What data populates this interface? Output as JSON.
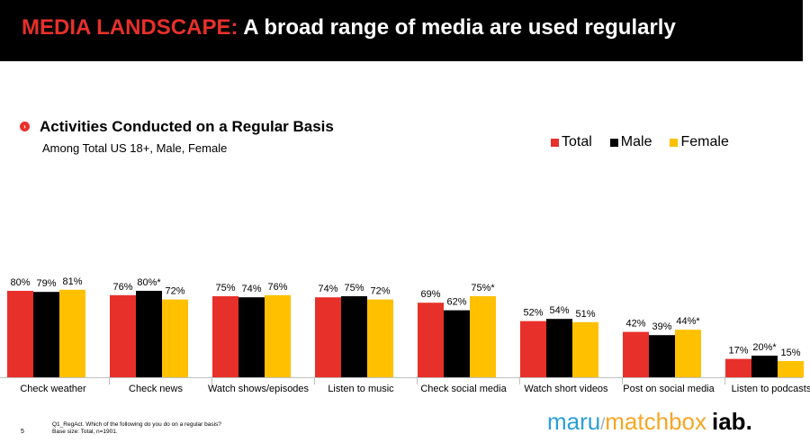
{
  "header": {
    "title_accent": "MEDIA LANDSCAPE:",
    "title_rest": "A broad range of media are used regularly"
  },
  "subhead": {
    "title": "Activities Conducted on a Regular Basis",
    "note": "Among Total US 18+, Male, Female"
  },
  "footer": {
    "page_number": "5",
    "note_line1": "Q1_RegAct. Which of the following do you do on a regular basis?",
    "note_line2": "Base size: Total, n=1901."
  },
  "logo": {
    "maru": "maru",
    "slash": "/",
    "matchbox": "matchbox",
    "iab": "iab."
  },
  "chart_data": {
    "type": "bar",
    "categories": [
      "Check weather",
      "Check news",
      "Watch shows/episodes",
      "Listen to music",
      "Check social media",
      "Watch short videos",
      "Post on social media",
      "Listen to podcasts"
    ],
    "series": [
      {
        "name": "Total",
        "color": "#e8302a",
        "values": [
          80,
          76,
          75,
          74,
          69,
          52,
          42,
          17
        ],
        "labels": [
          "80%",
          "76%",
          "75%",
          "74%",
          "69%",
          "52%",
          "42%",
          "17%"
        ]
      },
      {
        "name": "Male",
        "color": "#000000",
        "values": [
          79,
          80,
          74,
          75,
          62,
          54,
          39,
          20
        ],
        "labels": [
          "79%",
          "80%*",
          "74%",
          "75%",
          "62%",
          "54%",
          "39%",
          "20%*"
        ]
      },
      {
        "name": "Female",
        "color": "#ffc000",
        "values": [
          81,
          72,
          76,
          72,
          75,
          51,
          44,
          15
        ],
        "labels": [
          "81%",
          "72%",
          "76%",
          "72%",
          "75%*",
          "51%",
          "44%*",
          "15%"
        ]
      }
    ],
    "ylim": [
      0,
      100
    ],
    "legend_position": "top-right",
    "grid": false
  }
}
